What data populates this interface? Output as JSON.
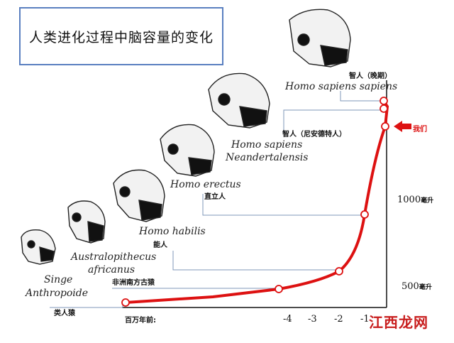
{
  "title": "人类进化过程中脑容量的变化",
  "labels": {
    "singe": "Singe",
    "anthropoide": "Anthropoide",
    "singe_cn": "类人猿",
    "australo": "Australopithecus",
    "africanus": "africanus",
    "australo_cn": "非洲南方古猿",
    "habilis": "Homo habilis",
    "habilis_cn": "能人",
    "erectus": "Homo erectus",
    "erectus_cn": "直立人",
    "neander1": "Homo sapiens",
    "neander2": "Neandertalensis",
    "neander_cn": "智人（尼安德特人）",
    "sapiens": "Homo sapiens sapiens",
    "sapiens_cn": "智人（晚期）",
    "us_cn": "我们"
  },
  "axis": {
    "x_title": "百万年前:",
    "x_ticks": [
      "-4",
      "-3",
      "-2",
      "-1"
    ],
    "y_ticks": [
      {
        "value": "500",
        "unit": "毫升"
      },
      {
        "value": "1000",
        "unit": "毫升"
      }
    ]
  },
  "watermark": "江西龙网",
  "colors": {
    "curve": "#dd1111",
    "frame": "#5a7fc0",
    "connector": "#7f97b8"
  }
}
